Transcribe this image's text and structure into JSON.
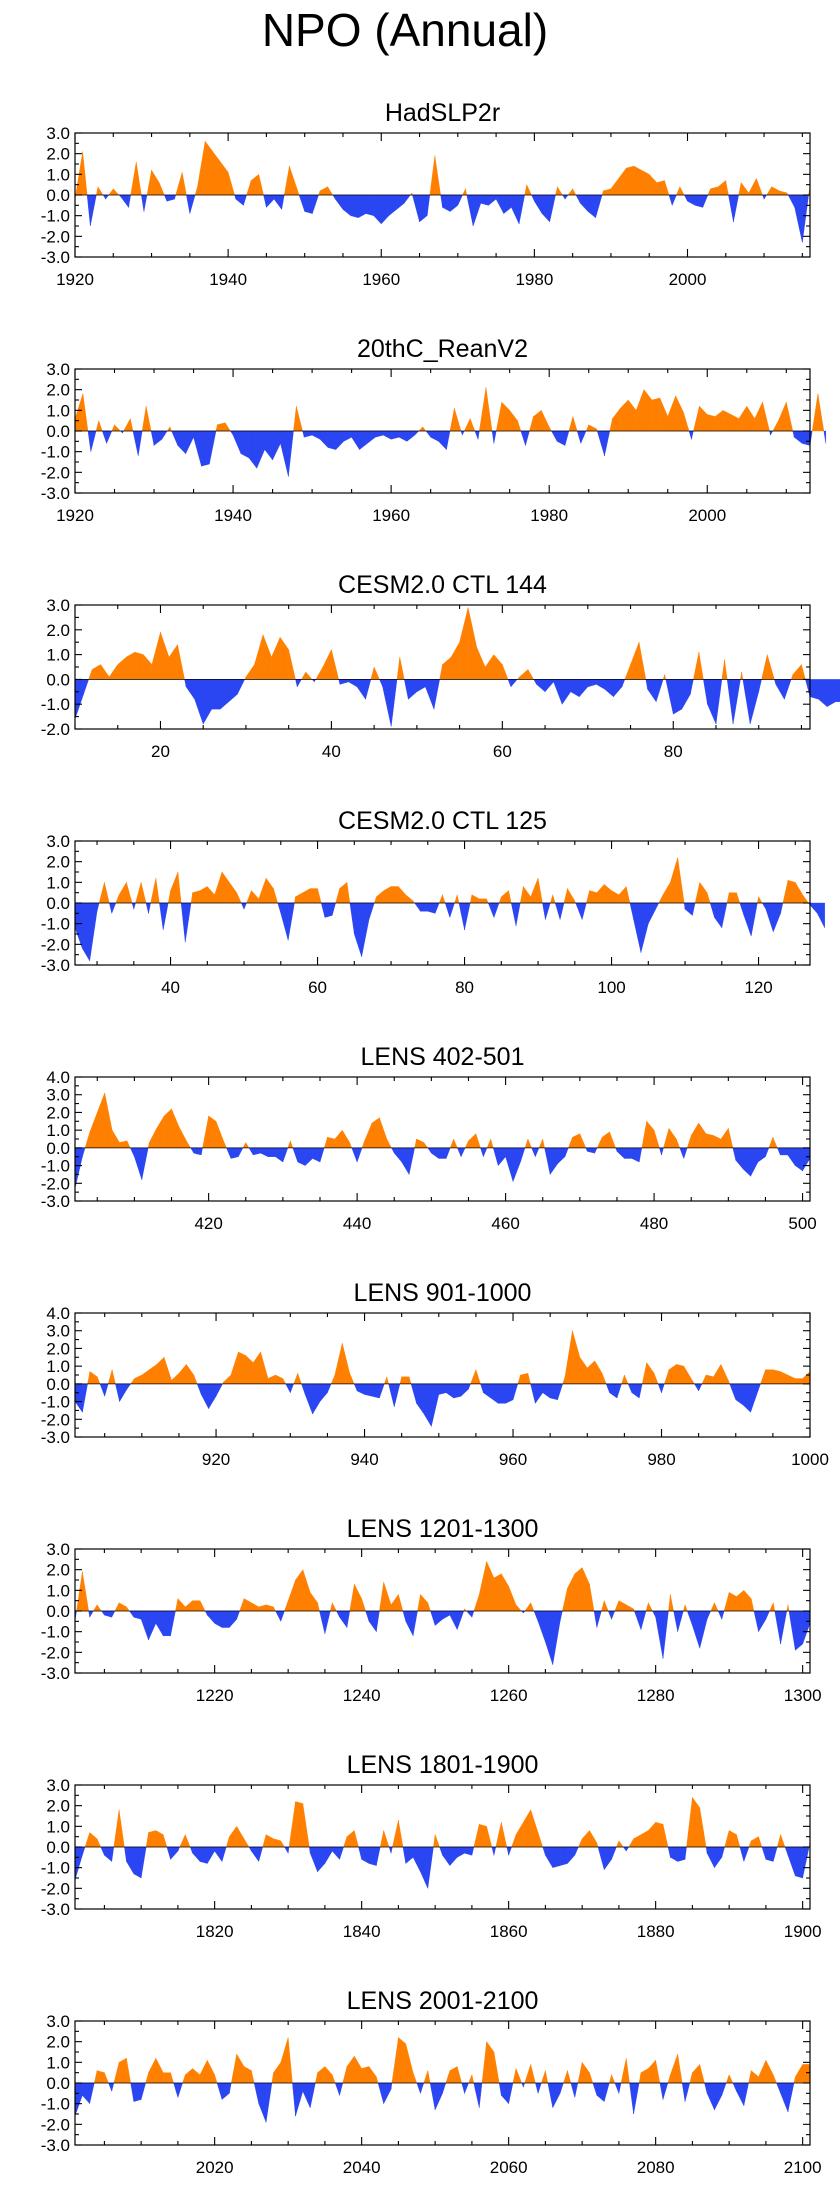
{
  "title": "NPO (Annual)",
  "colors": {
    "positive": "#ff8000",
    "negative": "#2a45f2"
  },
  "chart_data": [
    {
      "type": "area",
      "title": "HadSLP2r",
      "xlim": [
        1920,
        2016
      ],
      "ylim": [
        -3,
        3
      ],
      "yticks": [
        "3.0",
        "2.0",
        "1.0",
        "0.0",
        "-1.0",
        "-2.0",
        "-3.0"
      ],
      "xticks": [
        "1920",
        "1940",
        "1960",
        "1980",
        "2000"
      ],
      "x_start": 1920,
      "values": [
        -0.2,
        2.1,
        -1.5,
        0.4,
        -0.2,
        0.3,
        -0.1,
        -0.6,
        1.6,
        -0.8,
        1.2,
        0.6,
        -0.3,
        -0.2,
        1.1,
        -0.9,
        0.4,
        2.6,
        2.1,
        1.6,
        1.1,
        -0.2,
        -0.5,
        0.7,
        1.0,
        -0.6,
        -0.2,
        -0.7,
        1.4,
        0.3,
        -0.8,
        -0.9,
        0.2,
        0.4,
        -0.2,
        -0.7,
        -1.0,
        -1.1,
        -0.9,
        -1.0,
        -1.4,
        -1.0,
        -0.7,
        -0.4,
        0.1,
        -1.3,
        -1.0,
        1.9,
        -0.6,
        -0.8,
        -0.5,
        0.3,
        -1.5,
        -0.4,
        -0.5,
        -0.2,
        -0.9,
        -0.6,
        -1.4,
        0.5,
        -0.3,
        -0.9,
        -1.3,
        0.4,
        -0.2,
        0.3,
        -0.4,
        -0.8,
        -1.1,
        0.2,
        0.3,
        0.8,
        1.3,
        1.4,
        1.2,
        1.0,
        0.6,
        0.7,
        -0.5,
        0.4,
        -0.3,
        -0.5,
        -0.6,
        0.3,
        0.4,
        0.7,
        -1.3,
        0.6,
        0.1,
        0.8,
        -0.2,
        0.4,
        0.2,
        0.1,
        -0.6,
        -2.3,
        0.5
      ]
    },
    {
      "type": "area",
      "title": "20thC_ReanV2",
      "xlim": [
        1920,
        2013
      ],
      "ylim": [
        -3,
        3
      ],
      "yticks": [
        "3.0",
        "2.0",
        "1.0",
        "0.0",
        "-1.0",
        "-2.0",
        "-3.0"
      ],
      "xticks": [
        "1920",
        "1940",
        "1960",
        "1980",
        "2000"
      ],
      "x_start": 1920,
      "values": [
        0.6,
        1.8,
        -1.0,
        0.5,
        -0.6,
        0.3,
        -0.1,
        0.6,
        -1.2,
        1.2,
        -0.7,
        -0.4,
        0.2,
        -0.7,
        -1.1,
        -0.3,
        -1.7,
        -1.6,
        0.3,
        0.4,
        -0.2,
        -1.1,
        -1.3,
        -1.8,
        -0.9,
        -1.4,
        -0.6,
        -2.2,
        1.2,
        -0.3,
        -0.2,
        -0.4,
        -0.8,
        -0.9,
        -0.5,
        -0.3,
        -0.9,
        -0.6,
        -0.3,
        -0.2,
        -0.4,
        -0.3,
        -0.5,
        -0.2,
        0.2,
        -0.3,
        -0.5,
        -0.9,
        1.1,
        -0.2,
        0.6,
        -0.4,
        2.1,
        -0.6,
        1.4,
        1.0,
        0.5,
        -0.7,
        0.7,
        1.0,
        0.2,
        -0.5,
        -0.7,
        0.7,
        -0.6,
        0.3,
        0.1,
        -1.2,
        0.6,
        1.1,
        1.5,
        1.0,
        2.0,
        1.5,
        1.6,
        0.7,
        1.7,
        0.9,
        -0.4,
        1.2,
        0.8,
        0.7,
        1.0,
        0.8,
        0.6,
        1.2,
        0.6,
        1.4,
        -0.2,
        0.5,
        1.4,
        -0.3,
        -0.6,
        -0.7,
        1.8,
        -0.6
      ]
    },
    {
      "type": "area",
      "title": "CESM2.0 CTL 144",
      "xlim": [
        10,
        96
      ],
      "ylim": [
        -2,
        3
      ],
      "yticks": [
        "3.0",
        "2.0",
        "1.0",
        "0.0",
        "-1.0",
        "-2.0"
      ],
      "xticks": [
        "20",
        "40",
        "60",
        "80"
      ],
      "x_start": 10,
      "values": [
        -1.6,
        -0.6,
        0.4,
        0.6,
        0.1,
        0.6,
        0.9,
        1.1,
        1.0,
        0.6,
        1.9,
        0.9,
        1.4,
        -0.3,
        -0.8,
        -1.8,
        -1.2,
        -1.2,
        -0.9,
        -0.6,
        0.1,
        0.6,
        1.8,
        0.9,
        1.7,
        1.2,
        -0.3,
        0.3,
        -0.1,
        0.5,
        1.2,
        -0.2,
        -0.1,
        -0.3,
        -0.8,
        0.5,
        -0.3,
        -1.9,
        0.9,
        -0.8,
        -0.5,
        -0.3,
        -1.2,
        0.6,
        0.9,
        1.5,
        2.9,
        1.3,
        0.5,
        1.0,
        0.6,
        -0.3,
        0.1,
        0.4,
        -0.2,
        -0.5,
        -0.1,
        -1.0,
        -0.5,
        -0.7,
        -0.3,
        -0.2,
        -0.4,
        -0.7,
        -0.3,
        0.6,
        1.5,
        -0.4,
        -0.9,
        0.2,
        -1.4,
        -1.2,
        -0.6,
        1.1,
        -1.0,
        -1.8,
        0.8,
        -1.8,
        0.3,
        -1.8,
        -0.5,
        1.0,
        -0.2,
        -0.8,
        0.2,
        0.6,
        -0.7,
        -0.8,
        -1.1,
        -0.9,
        -0.9,
        -0.5,
        -1.0,
        -1.5
      ]
    },
    {
      "type": "area",
      "title": "CESM2.0 CTL 125",
      "xlim": [
        27,
        127
      ],
      "ylim": [
        -3,
        3
      ],
      "yticks": [
        "3.0",
        "2.0",
        "1.0",
        "0.0",
        "-1.0",
        "-2.0",
        "-3.0"
      ],
      "xticks": [
        "40",
        "60",
        "80",
        "100",
        "120"
      ],
      "x_start": 27,
      "values": [
        -1.2,
        -2.2,
        -2.8,
        -0.4,
        1.0,
        -0.5,
        0.4,
        1.0,
        -0.3,
        1.0,
        -0.5,
        1.2,
        -1.3,
        0.6,
        1.5,
        -1.9,
        0.5,
        0.6,
        0.8,
        0.4,
        1.5,
        1.0,
        0.5,
        -0.3,
        0.6,
        0.2,
        1.2,
        0.7,
        -0.5,
        -1.8,
        0.3,
        0.5,
        0.7,
        0.7,
        -0.7,
        -0.6,
        0.7,
        1.0,
        -1.5,
        -2.6,
        -0.8,
        0.3,
        0.6,
        0.8,
        0.8,
        0.4,
        0.1,
        -0.4,
        -0.4,
        -0.5,
        0.4,
        -0.7,
        0.4,
        -1.3,
        0.4,
        0.2,
        0.2,
        -0.7,
        0.3,
        0.6,
        -1.1,
        0.8,
        0.3,
        1.2,
        -0.8,
        0.4,
        -0.8,
        0.7,
        0.1,
        -0.8,
        0.6,
        0.5,
        0.9,
        0.6,
        0.4,
        0.8,
        -0.8,
        -2.4,
        -1.0,
        -0.3,
        0.4,
        1.0,
        2.2,
        -0.3,
        -0.6,
        1.0,
        0.5,
        -0.7,
        -1.2,
        0.5,
        0.5,
        -0.6,
        -1.6,
        0.3,
        -0.3,
        -1.4,
        -0.5,
        1.1,
        1.0,
        0.4,
        -0.1,
        -0.5,
        -1.2
      ]
    },
    {
      "type": "area",
      "title": "LENS 402-501",
      "xlim": [
        402,
        501
      ],
      "ylim": [
        -3,
        4
      ],
      "yticks": [
        "4.0",
        "3.0",
        "2.0",
        "1.0",
        "0.0",
        "-1.0",
        "-2.0",
        "-3.0"
      ],
      "xticks": [
        "420",
        "440",
        "460",
        "480",
        "500"
      ],
      "x_start": 402,
      "values": [
        -2.3,
        -0.5,
        0.9,
        2.0,
        3.1,
        1.0,
        0.3,
        0.4,
        -0.5,
        -1.8,
        0.3,
        1.1,
        1.8,
        2.2,
        1.2,
        0.4,
        -0.3,
        -0.4,
        1.8,
        1.5,
        0.4,
        -0.6,
        -0.5,
        0.3,
        -0.4,
        -0.3,
        -0.5,
        -0.5,
        -0.8,
        0.4,
        -0.8,
        -1.0,
        -0.6,
        -0.8,
        0.6,
        0.5,
        1.0,
        0.3,
        -0.8,
        0.4,
        1.4,
        1.7,
        0.5,
        -0.3,
        -0.8,
        -1.5,
        0.5,
        0.3,
        -0.3,
        -0.6,
        -0.6,
        0.5,
        -0.5,
        0.4,
        0.8,
        -0.5,
        0.5,
        -1.0,
        -0.5,
        -1.9,
        -0.8,
        0.5,
        -0.5,
        0.5,
        -1.5,
        -0.9,
        -0.5,
        0.6,
        0.8,
        -0.2,
        -0.3,
        0.6,
        0.9,
        -0.2,
        -0.6,
        -0.6,
        -0.8,
        1.5,
        1.0,
        -0.4,
        1.1,
        0.5,
        -0.6,
        0.7,
        1.4,
        0.8,
        0.7,
        0.5,
        1.1,
        -0.7,
        -1.2,
        -1.6,
        -0.8,
        -0.5,
        0.6,
        -0.4,
        -0.4,
        -1.0,
        -1.3,
        -0.6
      ]
    },
    {
      "type": "area",
      "title": "LENS 901-1000",
      "xlim": [
        901,
        1000
      ],
      "ylim": [
        -3,
        4
      ],
      "yticks": [
        "4.0",
        "3.0",
        "2.0",
        "1.0",
        "0.0",
        "-1.0",
        "-2.0",
        "-3.0"
      ],
      "xticks": [
        "920",
        "940",
        "960",
        "980",
        "1000"
      ],
      "x_start": 901,
      "values": [
        -1.0,
        -1.6,
        0.7,
        0.4,
        -0.7,
        0.8,
        -1.0,
        -0.3,
        0.3,
        0.5,
        0.8,
        1.1,
        1.5,
        0.2,
        0.6,
        1.1,
        0.5,
        -0.6,
        -1.4,
        -0.7,
        0.1,
        0.5,
        1.8,
        1.6,
        1.2,
        1.8,
        0.3,
        0.5,
        0.3,
        -0.5,
        0.6,
        -0.6,
        -1.7,
        -1.0,
        -0.5,
        0.5,
        2.3,
        0.6,
        -0.4,
        -0.6,
        -0.7,
        -0.8,
        0.4,
        -1.3,
        0.4,
        0.4,
        -1.1,
        -1.7,
        -2.4,
        -0.6,
        -0.5,
        -0.8,
        -0.7,
        -0.3,
        0.8,
        -0.5,
        -0.8,
        -1.1,
        -1.1,
        -0.9,
        0.5,
        0.6,
        -1.1,
        -0.5,
        -0.8,
        -0.9,
        0.4,
        3.0,
        1.5,
        0.9,
        1.3,
        0.6,
        -0.5,
        -0.8,
        0.5,
        -0.5,
        -0.8,
        1.2,
        0.6,
        -0.5,
        0.8,
        1.1,
        1.0,
        0.3,
        -0.4,
        0.5,
        0.4,
        1.1,
        0.2,
        -0.9,
        -1.2,
        -1.6,
        -0.4,
        0.8,
        0.8,
        0.7,
        0.5,
        0.3,
        0.3,
        0.7
      ]
    },
    {
      "type": "area",
      "title": "LENS 1201-1300",
      "xlim": [
        1201,
        1301
      ],
      "ylim": [
        -3,
        3
      ],
      "yticks": [
        "3.0",
        "2.0",
        "1.0",
        "0.0",
        "-1.0",
        "-2.0",
        "-3.0"
      ],
      "xticks": [
        "1220",
        "1240",
        "1260",
        "1280",
        "1300"
      ],
      "x_start": 1201,
      "values": [
        -0.5,
        1.9,
        -0.3,
        0.3,
        -0.2,
        -0.3,
        0.4,
        0.2,
        -0.3,
        -0.4,
        -1.4,
        -0.6,
        -1.2,
        -1.2,
        0.6,
        0.2,
        0.5,
        0.5,
        -0.2,
        -0.6,
        -0.8,
        -0.8,
        -0.4,
        0.6,
        0.4,
        0.2,
        0.3,
        0.2,
        -0.5,
        0.5,
        1.5,
        2.0,
        0.9,
        0.4,
        -1.1,
        0.4,
        -0.3,
        -0.8,
        1.3,
        0.6,
        -0.5,
        -1.0,
        1.4,
        0.3,
        0.8,
        -0.5,
        -1.2,
        0.8,
        0.4,
        -0.7,
        -0.4,
        -0.2,
        -0.9,
        0.1,
        -0.3,
        0.8,
        2.4,
        1.6,
        1.8,
        1.2,
        0.3,
        -0.1,
        0.4,
        -0.5,
        -1.5,
        -2.6,
        -0.5,
        1.1,
        1.8,
        2.1,
        1.3,
        -0.8,
        0.5,
        -0.4,
        0.5,
        0.3,
        0.1,
        -0.9,
        0.4,
        -0.3,
        -2.3,
        0.8,
        -1.0,
        0.3,
        -0.7,
        -1.8,
        -0.4,
        0.4,
        -0.4,
        0.9,
        0.7,
        1.0,
        0.6,
        -1.0,
        -0.4,
        0.4,
        -1.6,
        0.3,
        -1.9,
        -1.6,
        -0.6
      ]
    },
    {
      "type": "area",
      "title": "LENS 1801-1900",
      "xlim": [
        1801,
        1901
      ],
      "ylim": [
        -3,
        3
      ],
      "yticks": [
        "3.0",
        "2.0",
        "1.0",
        "0.0",
        "-1.0",
        "-2.0",
        "-3.0"
      ],
      "xticks": [
        "1820",
        "1840",
        "1860",
        "1880",
        "1900"
      ],
      "x_start": 1801,
      "values": [
        -1.6,
        -0.4,
        0.7,
        0.4,
        -0.4,
        -0.7,
        1.8,
        -0.7,
        -1.3,
        -1.5,
        0.7,
        0.8,
        0.6,
        -0.6,
        -0.2,
        0.6,
        -0.3,
        -0.7,
        -0.8,
        -0.2,
        -0.7,
        0.5,
        1.0,
        0.4,
        -0.2,
        -0.7,
        0.6,
        0.4,
        0.3,
        -0.3,
        2.2,
        2.1,
        -0.3,
        -1.2,
        -0.8,
        -0.2,
        -0.6,
        0.5,
        0.8,
        -0.6,
        -0.8,
        -0.9,
        0.8,
        -0.3,
        1.3,
        -0.8,
        -0.5,
        -1.2,
        -2.0,
        0.6,
        -0.4,
        -0.9,
        -0.5,
        -0.3,
        -0.4,
        1.1,
        1.0,
        -0.4,
        1.2,
        -0.4,
        0.6,
        1.2,
        1.8,
        0.7,
        -0.4,
        -1.0,
        -0.9,
        -0.8,
        -0.4,
        0.4,
        0.8,
        0.2,
        -1.1,
        -0.6,
        0.3,
        -0.2,
        0.4,
        0.6,
        0.8,
        1.2,
        1.1,
        -0.5,
        -0.7,
        -0.6,
        2.4,
        1.9,
        -0.3,
        -1.0,
        -0.5,
        0.8,
        0.6,
        -0.7,
        0.3,
        0.5,
        -0.6,
        -0.7,
        0.6,
        -0.4,
        -1.4,
        -1.5,
        0.2
      ]
    },
    {
      "type": "area",
      "title": "LENS 2001-2100",
      "xlim": [
        2001,
        2101
      ],
      "ylim": [
        -3,
        3
      ],
      "yticks": [
        "3.0",
        "2.0",
        "1.0",
        "0.0",
        "-1.0",
        "-2.0",
        "-3.0"
      ],
      "xticks": [
        "2020",
        "2040",
        "2060",
        "2080",
        "2100"
      ],
      "x_start": 2001,
      "values": [
        -1.6,
        -0.6,
        -1.0,
        0.6,
        0.5,
        -0.4,
        1.0,
        1.2,
        -0.9,
        -0.8,
        0.5,
        1.2,
        0.5,
        0.5,
        -0.7,
        0.4,
        0.7,
        0.4,
        1.1,
        0.4,
        -0.8,
        -0.5,
        1.4,
        0.8,
        0.6,
        -1.0,
        -1.9,
        0.5,
        1.0,
        2.2,
        -1.6,
        -0.4,
        -1.2,
        0.5,
        0.8,
        0.4,
        -0.6,
        0.8,
        1.3,
        0.7,
        0.8,
        0.3,
        -1.0,
        -0.3,
        2.2,
        1.9,
        0.5,
        -0.5,
        0.6,
        -1.3,
        -0.5,
        0.6,
        0.8,
        -0.5,
        0.4,
        -1.2,
        2.0,
        1.5,
        -0.6,
        -1.0,
        0.7,
        -0.2,
        0.9,
        -0.5,
        0.6,
        -1.2,
        -0.5,
        0.6,
        -0.7,
        1.0,
        0.5,
        -0.6,
        -0.9,
        0.4,
        -0.5,
        1.2,
        -1.5,
        0.5,
        0.7,
        1.1,
        -0.8,
        0.4,
        1.4,
        -0.9,
        0.5,
        0.9,
        -0.5,
        -1.3,
        -0.6,
        0.4,
        -0.4,
        -1.1,
        0.6,
        0.3,
        1.1,
        0.4,
        -0.5,
        -1.4,
        0.3,
        0.9,
        0.9
      ]
    }
  ]
}
